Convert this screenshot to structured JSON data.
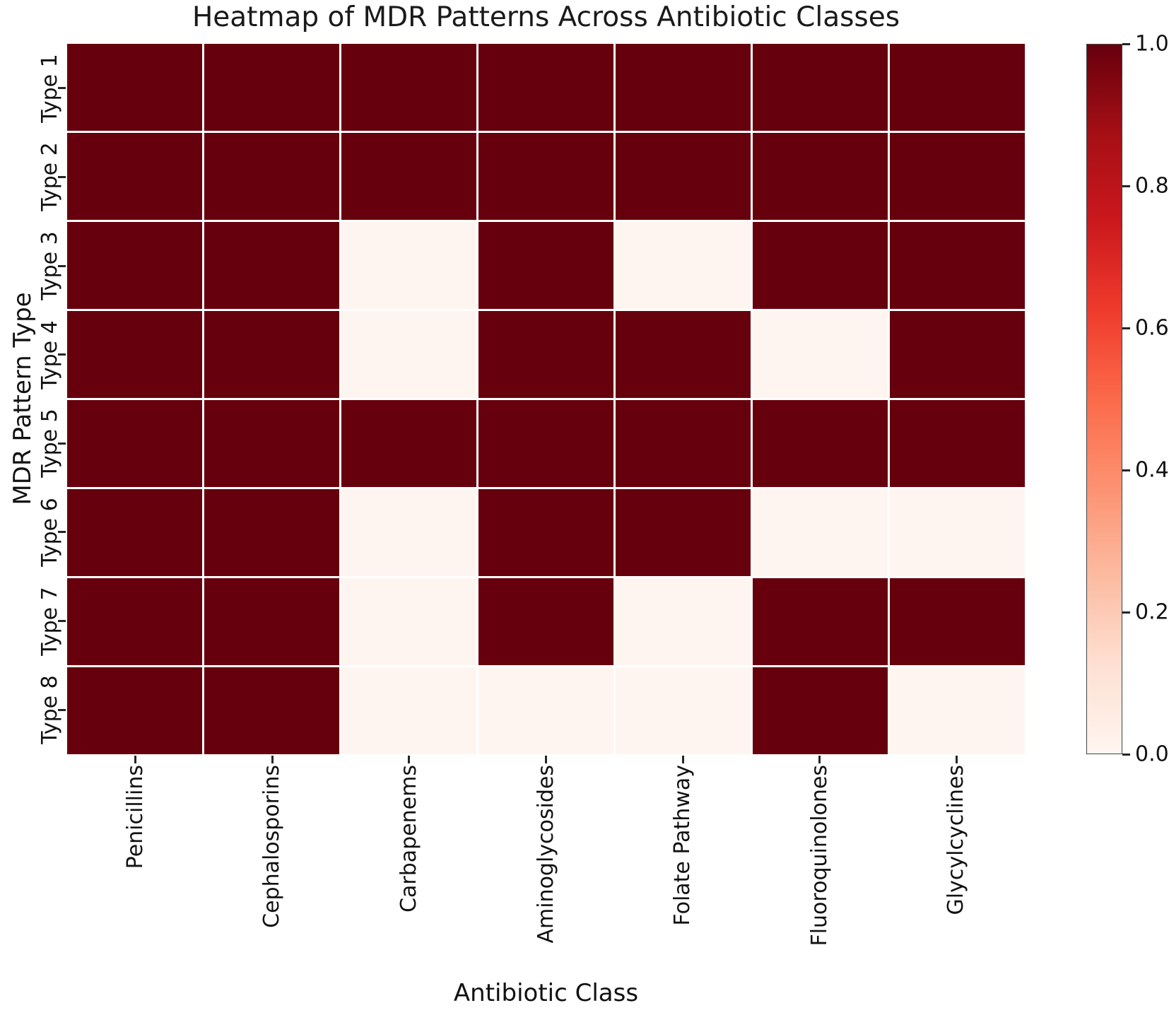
{
  "chart_data": {
    "type": "heatmap",
    "title": "Heatmap of MDR Patterns Across Antibiotic Classes",
    "xlabel": "Antibiotic Class",
    "ylabel": "MDR Pattern Type",
    "x_categories": [
      "Penicillins",
      "Cephalosporins",
      "Carbapenems",
      "Aminoglycosides",
      "Folate Pathway",
      "Fluoroquinolones",
      "Glycylcyclines"
    ],
    "y_categories": [
      "Type 1",
      "Type 2",
      "Type 3",
      "Type 4",
      "Type 5",
      "Type 6",
      "Type 7",
      "Type 8"
    ],
    "matrix": [
      [
        1,
        1,
        1,
        1,
        1,
        1,
        1
      ],
      [
        1,
        1,
        1,
        1,
        1,
        1,
        1
      ],
      [
        1,
        1,
        0,
        1,
        0,
        1,
        1
      ],
      [
        1,
        1,
        0,
        1,
        1,
        0,
        1
      ],
      [
        1,
        1,
        1,
        1,
        1,
        1,
        1
      ],
      [
        1,
        1,
        0,
        1,
        1,
        0,
        0
      ],
      [
        1,
        1,
        0,
        1,
        0,
        1,
        1
      ],
      [
        1,
        1,
        0,
        0,
        0,
        1,
        0
      ]
    ],
    "vmin": 0,
    "vmax": 1,
    "grid": true,
    "gridline_color": "#ffffff",
    "colormap": {
      "name": "Reds",
      "min_color": "#fff5f0",
      "max_color": "#67000d",
      "stops": [
        "#fff5f0",
        "#fee0d2",
        "#fcbba1",
        "#fc9272",
        "#fb6a4a",
        "#ef3b2c",
        "#cb181d",
        "#a50f15",
        "#67000d"
      ]
    },
    "colorbar": {
      "position": "right",
      "tick_labels": [
        "1.0",
        "0.8",
        "0.6",
        "0.4",
        "0.2",
        "0.0"
      ]
    }
  }
}
